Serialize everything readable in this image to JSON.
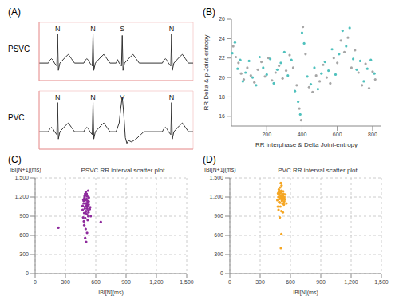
{
  "chart_data": [
    {
      "type": "line",
      "panel_label": "(A)",
      "tick_labels": false,
      "grid": true,
      "xlim": [
        0,
        100
      ],
      "ylim": [
        -0.6,
        1.4
      ],
      "xticks": [
        0,
        5,
        10,
        15,
        20,
        25,
        30,
        35,
        40,
        45,
        50,
        55,
        60,
        65,
        70,
        75,
        80,
        85,
        90,
        95,
        100
      ],
      "yticks": [
        -0.6,
        -0.4,
        -0.2,
        0,
        0.2,
        0.4,
        0.6,
        0.8,
        1.0,
        1.2,
        1.4
      ],
      "strips": [
        {
          "name": "PSVC",
          "color": "#333333",
          "x": [
            0,
            6,
            7,
            8,
            9,
            10,
            11.5,
            12,
            12.5,
            13.5,
            17,
            19,
            21,
            23,
            29,
            30,
            31,
            32,
            33,
            34.5,
            35,
            35.5,
            36.5,
            40,
            42,
            44,
            46,
            50,
            51,
            52,
            53.5,
            54,
            54.5,
            55.5,
            59,
            61,
            63,
            65,
            80,
            81,
            82,
            83,
            84,
            85.5,
            86,
            86.5,
            87.5,
            91,
            93,
            95,
            97,
            100
          ],
          "values": [
            0,
            0,
            0.1,
            0.15,
            0.1,
            0,
            -0.1,
            1.0,
            -0.25,
            0,
            0.2,
            0.3,
            0.15,
            0,
            0,
            0.1,
            0.15,
            0.1,
            0,
            -0.1,
            1.0,
            -0.25,
            0,
            0.2,
            0.3,
            0.15,
            0,
            0,
            0.12,
            0,
            -0.1,
            0.95,
            -0.25,
            0,
            0.2,
            0.3,
            0.15,
            0,
            0,
            0.1,
            0.15,
            0.1,
            0,
            -0.1,
            1.0,
            -0.25,
            0,
            0.2,
            0.3,
            0.15,
            0,
            0
          ],
          "annotations": [
            {
              "x": 12,
              "text": "N"
            },
            {
              "x": 35,
              "text": "N"
            },
            {
              "x": 54,
              "text": "S"
            },
            {
              "x": 86,
              "text": "N"
            }
          ]
        },
        {
          "name": "PVC",
          "color": "#333333",
          "x": [
            0,
            6,
            7,
            8,
            9,
            10,
            11.5,
            12,
            12.5,
            13.5,
            17,
            19,
            21,
            23,
            29,
            30,
            31,
            32,
            33,
            34.5,
            35,
            35.5,
            36.5,
            40,
            42,
            44,
            46,
            50,
            52,
            53,
            54,
            55,
            56,
            57,
            58,
            60,
            63,
            66,
            68,
            80,
            81,
            82,
            83,
            84,
            85.5,
            86,
            86.5,
            87.5,
            91,
            93,
            95,
            97,
            100
          ],
          "values": [
            0,
            0,
            0.1,
            0.15,
            0.1,
            0,
            -0.1,
            1.0,
            -0.25,
            0,
            0.2,
            0.3,
            0.15,
            0,
            0,
            0.1,
            0.15,
            0.1,
            0,
            -0.1,
            1.0,
            -0.25,
            0,
            0.2,
            0.3,
            0.15,
            0,
            0,
            0.3,
            0.8,
            1.2,
            0.6,
            -0.2,
            -0.4,
            -0.3,
            -0.35,
            -0.25,
            -0.1,
            0,
            0,
            0.1,
            0.15,
            0.1,
            0,
            -0.1,
            1.0,
            -0.25,
            0,
            0.2,
            0.3,
            0.15,
            0,
            0
          ],
          "annotations": [
            {
              "x": 12,
              "text": "N"
            },
            {
              "x": 35,
              "text": "N"
            },
            {
              "x": 54,
              "text": "V"
            },
            {
              "x": 86,
              "text": "N"
            }
          ]
        }
      ]
    },
    {
      "type": "scatter",
      "panel_label": "(B)",
      "grid": false,
      "x_label": "RR interphase & Delta Joint-entropy",
      "y_label": "RR Delta & p Joint-entropy",
      "xlim": [
        0,
        850
      ],
      "ylim": [
        15,
        26
      ],
      "xticks": [
        200,
        400,
        600,
        800
      ],
      "yticks": [
        16,
        18,
        20,
        22,
        24,
        26
      ],
      "series": [
        {
          "color": "#a6a6a6",
          "x": [
            10,
            25,
            40,
            55,
            70,
            90,
            110,
            130,
            150,
            170,
            190,
            210,
            230,
            250,
            270,
            290,
            310,
            330,
            350,
            370,
            385,
            395,
            405,
            420,
            440,
            460,
            480,
            500,
            520,
            540,
            560,
            580,
            600,
            620,
            640,
            660,
            680,
            700,
            720,
            740,
            760,
            780,
            800,
            815
          ],
          "values": [
            23.2,
            22.1,
            21.5,
            20.4,
            19.8,
            21.0,
            20.2,
            19.5,
            20.8,
            21.6,
            20.1,
            22.0,
            19.7,
            20.5,
            21.2,
            19.9,
            20.7,
            22.3,
            21.0,
            19.2,
            16.8,
            15.6,
            25.2,
            22.4,
            19.0,
            18.5,
            20.2,
            19.6,
            21.3,
            20.0,
            19.4,
            22.0,
            21.5,
            23.8,
            22.6,
            24.1,
            21.0,
            22.8,
            20.5,
            19.2,
            21.4,
            18.9,
            20.6,
            19.8
          ]
        },
        {
          "color": "#4fc1bd",
          "x": [
            5,
            20,
            35,
            50,
            65,
            80,
            100,
            120,
            140,
            160,
            180,
            200,
            220,
            240,
            260,
            280,
            300,
            320,
            340,
            360,
            378,
            390,
            400,
            412,
            430,
            450,
            470,
            490,
            510,
            530,
            550,
            570,
            590,
            610,
            630,
            650,
            670,
            690,
            710,
            730,
            750,
            770,
            790,
            810
          ],
          "values": [
            22.5,
            23.6,
            20.9,
            21.8,
            19.6,
            20.5,
            21.7,
            20.0,
            19.2,
            22.1,
            21.0,
            20.3,
            21.9,
            19.4,
            20.8,
            21.5,
            22.6,
            20.2,
            21.8,
            18.6,
            17.5,
            16.2,
            24.6,
            23.5,
            20.1,
            19.3,
            21.0,
            18.8,
            20.4,
            21.6,
            20.7,
            22.9,
            20.3,
            22.4,
            24.8,
            23.2,
            25.1,
            21.9,
            20.8,
            21.7,
            19.6,
            20.9,
            21.8,
            20.4
          ]
        }
      ]
    },
    {
      "type": "scatter",
      "panel_label": "(C)",
      "title": "PSVC RR interval scatter plot",
      "grid": true,
      "x_label": "IBI[N](ms)",
      "y_label": "IBI[N+1](ms)",
      "xlim": [
        0,
        1500
      ],
      "ylim": [
        0,
        1500
      ],
      "xticks": [
        0,
        300,
        600,
        900,
        {
          "value": 1200,
          "label": "1,200"
        },
        {
          "value": 1500,
          "label": "1,500"
        }
      ],
      "yticks": [
        0,
        300,
        600,
        900,
        {
          "value": 1200,
          "label": "1,200"
        },
        {
          "value": 1500,
          "label": "1,500"
        }
      ],
      "color": "#8e2a9c",
      "x": [
        470,
        480,
        485,
        490,
        495,
        500,
        505,
        510,
        515,
        520,
        525,
        530,
        475,
        488,
        498,
        508,
        518,
        528,
        478,
        492,
        502,
        512,
        522,
        532,
        540,
        482,
        496,
        506,
        516,
        526,
        486,
        500,
        514,
        524,
        470,
        494,
        510,
        530,
        545,
        505,
        490,
        520,
        500,
        515,
        480,
        550,
        230,
        650,
        495,
        505
      ],
      "values": [
        1000,
        1100,
        950,
        1200,
        1050,
        1150,
        980,
        1250,
        1020,
        1120,
        900,
        1080,
        880,
        1180,
        1230,
        1060,
        1140,
        960,
        1160,
        1020,
        1280,
        930,
        1070,
        1190,
        1010,
        820,
        870,
        1100,
        1210,
        990,
        760,
        700,
        640,
        1300,
        1060,
        1250,
        1170,
        1130,
        1040,
        1100,
        1220,
        840,
        950,
        1080,
        1140,
        900,
        720,
        810,
        560,
        500
      ]
    },
    {
      "type": "scatter",
      "panel_label": "(D)",
      "title": "PVC RR interval scatter plot",
      "grid": true,
      "x_label": "IBI[N](ms)",
      "y_label": "IBI[N+1](ms)",
      "xlim": [
        0,
        1500
      ],
      "ylim": [
        0,
        1500
      ],
      "xticks": [
        0,
        300,
        600,
        900,
        {
          "value": 1200,
          "label": "1,200"
        },
        {
          "value": 1500,
          "label": "1,500"
        }
      ],
      "yticks": [
        0,
        300,
        600,
        900,
        {
          "value": 1200,
          "label": "1,200"
        },
        {
          "value": 1500,
          "label": "1,500"
        }
      ],
      "color": "#f5a623",
      "x": [
        470,
        480,
        490,
        500,
        510,
        520,
        530,
        540,
        550,
        475,
        485,
        495,
        505,
        515,
        525,
        535,
        545,
        478,
        488,
        498,
        508,
        518,
        528,
        538,
        482,
        492,
        502,
        512,
        522,
        532,
        486,
        496,
        506,
        516,
        526,
        500,
        510,
        520,
        490,
        505,
        515,
        525,
        540,
        560,
        480,
        495,
        510,
        530,
        505,
        500
      ],
      "values": [
        1150,
        1200,
        1250,
        1180,
        1300,
        1220,
        1100,
        1170,
        1240,
        1050,
        1320,
        1190,
        1270,
        1140,
        1210,
        1080,
        1160,
        1260,
        1120,
        1350,
        1230,
        1190,
        1290,
        1130,
        1000,
        1170,
        1220,
        1380,
        1150,
        1250,
        1280,
        1110,
        1200,
        1170,
        1230,
        1050,
        980,
        1100,
        1300,
        1420,
        1160,
        960,
        1200,
        1100,
        1240,
        880,
        620,
        1190,
        400,
        1270
      ]
    }
  ]
}
